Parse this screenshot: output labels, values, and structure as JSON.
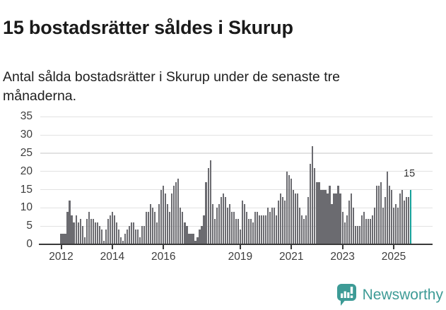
{
  "header": {
    "title": "15 bostadsrätter såldes i Skurup",
    "subtitle": "Antal sålda bostadsrätter i Skurup under de senaste tre månaderna."
  },
  "chart_data": {
    "type": "bar",
    "title": "15 bostadsrätter såldes i Skurup",
    "xlabel": "",
    "ylabel": "",
    "x_start": "2012-01",
    "x_end": "2025-09",
    "x_frequency": "monthly",
    "values": [
      3,
      3,
      3,
      9,
      12,
      8,
      6,
      8,
      6,
      7,
      5,
      2,
      7,
      9,
      7,
      7,
      6,
      6,
      5,
      4,
      1,
      4,
      7,
      8,
      9,
      8,
      6,
      4,
      2,
      1,
      3,
      4,
      5,
      6,
      6,
      4,
      4,
      2,
      5,
      5,
      9,
      9,
      11,
      10,
      9,
      6,
      11,
      15,
      16,
      14,
      11,
      9,
      14,
      16,
      17,
      18,
      10,
      9,
      6,
      5,
      3,
      3,
      3,
      1,
      2,
      4,
      5,
      8,
      17,
      21,
      23,
      11,
      7,
      10,
      11,
      13,
      14,
      13,
      10,
      11,
      9,
      9,
      7,
      7,
      4,
      12,
      11,
      9,
      7,
      7,
      6,
      9,
      9,
      8,
      8,
      8,
      8,
      10,
      9,
      10,
      10,
      8,
      12,
      14,
      13,
      12,
      20,
      19,
      18,
      15,
      14,
      14,
      10,
      8,
      7,
      8,
      13,
      22,
      27,
      21,
      17,
      17,
      15,
      15,
      15,
      14,
      16,
      11,
      14,
      14,
      16,
      14,
      9,
      6,
      8,
      12,
      14,
      10,
      5,
      5,
      5,
      8,
      9,
      7,
      7,
      7,
      8,
      10,
      16,
      16,
      17,
      10,
      13,
      20,
      16,
      15,
      10,
      11,
      10,
      14,
      15,
      12,
      13,
      13,
      15
    ],
    "highlight_last": true,
    "highlight_value_label": "15",
    "ylim": [
      0,
      35
    ],
    "yticks": [
      0,
      5,
      10,
      15,
      20,
      25,
      30,
      35
    ],
    "xticks": [
      {
        "label": "2012",
        "month_index": 0
      },
      {
        "label": "2014",
        "month_index": 24
      },
      {
        "label": "2016",
        "month_index": 48
      },
      {
        "label": "2019",
        "month_index": 84
      },
      {
        "label": "2021",
        "month_index": 108
      },
      {
        "label": "2023",
        "month_index": 132
      },
      {
        "label": "2025",
        "month_index": 156
      }
    ],
    "grid": true,
    "legend": false,
    "colors": {
      "bar": "#6b6b70",
      "highlight": "#16a099",
      "gridline": "#e2e2e2",
      "axis": "#3a3a3a"
    }
  },
  "footer": {
    "brand": "Newsworthy",
    "brand_color": "#3d9b96",
    "logo_icon": "bar-chart-speech-bubble-icon"
  }
}
